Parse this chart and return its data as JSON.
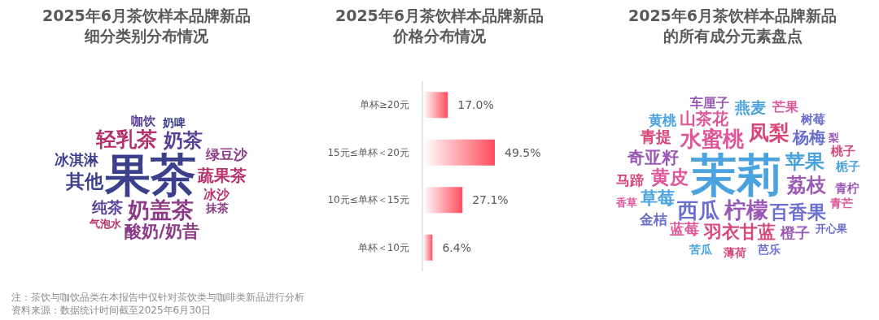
{
  "chart_data": [
    {
      "type": "other",
      "title": "2025年6月茶饮样本品牌新品细分类别分布情况",
      "annotations": [
        "果茶",
        "奶盖茶",
        "轻乳茶",
        "奶茶",
        "其他",
        "酸奶/奶昔",
        "蔬果茶",
        "纯茶",
        "冰淇淋",
        "绿豆沙",
        "冰沙",
        "咖饮",
        "奶啤",
        "抹茶",
        "气泡水"
      ]
    },
    {
      "type": "bar",
      "orientation": "horizontal",
      "title": "2025年6月茶饮样本品牌新品价格分布情况",
      "categories": [
        "单杯≥20元",
        "15元≤单杯＜20元",
        "10元≤单杯＜15元",
        "单杯＜10元"
      ],
      "values": [
        17.0,
        49.5,
        27.1,
        6.4
      ],
      "color": "#ff4d5e",
      "value_labels": [
        "17.0%",
        "49.5%",
        "27.1%",
        "6.4%"
      ],
      "annotations": [
        "注：茶饮与咖饮品类在本报告中仅针对茶饮类与咖啡类新品进行分析",
        "资料来源：数据统计时间截至2025年6月30日"
      ]
    },
    {
      "type": "other",
      "title": "2025年6月茶饮样本品牌新品的所有成分元素盘点",
      "annotations": [
        "茉莉",
        "柠檬",
        "水蜜桃",
        "西瓜",
        "凤梨",
        "苹果",
        "荔枝",
        "黄皮",
        "百香果",
        "羽衣甘蓝",
        "草莓",
        "奇亚籽",
        "山茶花",
        "杨梅",
        "青提",
        "燕麦",
        "橙子",
        "蓝莓",
        "金桔",
        "马蹄",
        "黄桃",
        "车厘子",
        "芒果",
        "树莓",
        "桃子",
        "栀子",
        "青柠",
        "青芒",
        "芭乐",
        "薄荷",
        "苦瓜",
        "梨",
        "香草",
        "开心果"
      ]
    }
  ]
}
